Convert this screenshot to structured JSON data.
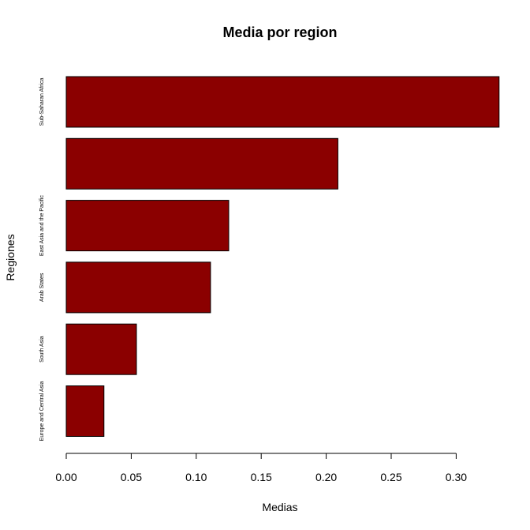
{
  "chart_data": {
    "type": "bar",
    "orientation": "horizontal",
    "title": "Media por region",
    "xlabel": "Medias",
    "ylabel": "Regiones",
    "categories": [
      "Sub-Saharan Africa",
      "",
      "East Asia and the Pacific",
      "Arab States",
      "South Asia",
      "Europe and Central Asia"
    ],
    "values": [
      0.333,
      0.209,
      0.125,
      0.111,
      0.054,
      0.029
    ],
    "xlim": [
      0,
      0.33
    ],
    "xticks": [
      0.0,
      0.05,
      0.1,
      0.15,
      0.2,
      0.25,
      0.3
    ],
    "xtick_labels": [
      "0.00",
      "0.05",
      "0.10",
      "0.15",
      "0.20",
      "0.25",
      "0.30"
    ],
    "bar_color": "#8b0000",
    "grid": false,
    "legend": "none"
  }
}
